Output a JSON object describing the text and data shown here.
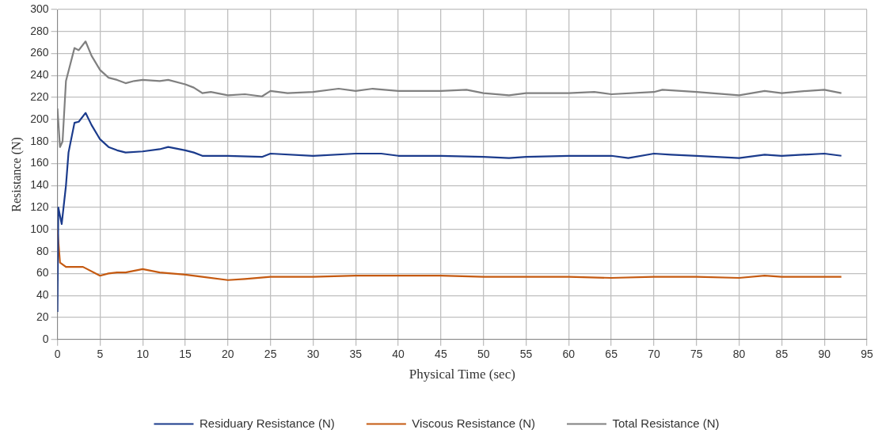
{
  "chart_data": {
    "type": "line",
    "xlabel": "Physical Time (sec)",
    "ylabel": "Resistance (N)",
    "xlim": [
      0,
      95
    ],
    "xticks": [
      0,
      5,
      10,
      15,
      20,
      25,
      30,
      35,
      40,
      45,
      50,
      55,
      60,
      65,
      70,
      75,
      80,
      85,
      90,
      95
    ],
    "ylim": [
      0,
      300
    ],
    "yticks": [
      0,
      20,
      40,
      60,
      80,
      100,
      120,
      140,
      160,
      180,
      200,
      220,
      240,
      260,
      280,
      300
    ],
    "grid": true,
    "legend": "bottom",
    "marker": "none",
    "line_style": "solid",
    "series": [
      {
        "name": "Residuary Resistance (N)",
        "color": "#1b3b8c",
        "x": [
          0,
          0.1,
          0.5,
          1,
          1.3,
          2,
          2.5,
          3.3,
          4,
          5,
          6,
          7,
          8,
          10,
          12,
          13,
          15,
          16,
          17,
          20,
          24,
          25,
          30,
          35,
          38,
          40,
          45,
          50,
          53,
          55,
          60,
          65,
          67,
          70,
          72,
          75,
          80,
          83,
          85,
          90,
          92
        ],
        "values": [
          25,
          120,
          105,
          140,
          170,
          197,
          198,
          206,
          195,
          182,
          175,
          172,
          170,
          171,
          173,
          175,
          172,
          170,
          167,
          167,
          166,
          169,
          167,
          169,
          169,
          167,
          167,
          166,
          165,
          166,
          167,
          167,
          165,
          169,
          168,
          167,
          165,
          168,
          167,
          169,
          167
        ]
      },
      {
        "name": "Viscous Resistance (N)",
        "color": "#c55a11",
        "x": [
          0,
          0.3,
          1,
          3,
          5,
          6,
          7,
          8,
          10,
          12,
          15,
          17,
          20,
          22,
          25,
          30,
          35,
          40,
          45,
          50,
          55,
          60,
          65,
          70,
          75,
          80,
          83,
          85,
          90,
          92
        ],
        "values": [
          100,
          70,
          66,
          66,
          58,
          60,
          61,
          61,
          64,
          61,
          59,
          57,
          54,
          55,
          57,
          57,
          58,
          58,
          58,
          57,
          57,
          57,
          56,
          57,
          57,
          56,
          58,
          57,
          57,
          57
        ]
      },
      {
        "name": "Total Resistance (N)",
        "color": "#808080",
        "x": [
          0,
          0.3,
          0.6,
          1,
          1.5,
          2,
          2.5,
          3.3,
          4,
          5,
          6,
          7,
          8,
          9,
          10,
          12,
          13,
          15,
          16,
          17,
          18,
          20,
          22,
          24,
          25,
          27,
          30,
          33,
          35,
          37,
          40,
          45,
          48,
          50,
          53,
          55,
          60,
          63,
          65,
          70,
          71,
          75,
          80,
          83,
          85,
          88,
          90,
          92
        ],
        "values": [
          210,
          175,
          180,
          235,
          250,
          265,
          263,
          271,
          258,
          245,
          238,
          236,
          233,
          235,
          236,
          235,
          236,
          232,
          229,
          224,
          225,
          222,
          223,
          221,
          226,
          224,
          225,
          228,
          226,
          228,
          226,
          226,
          227,
          224,
          222,
          224,
          224,
          225,
          223,
          225,
          227,
          225,
          222,
          226,
          224,
          226,
          227,
          224
        ]
      }
    ]
  }
}
